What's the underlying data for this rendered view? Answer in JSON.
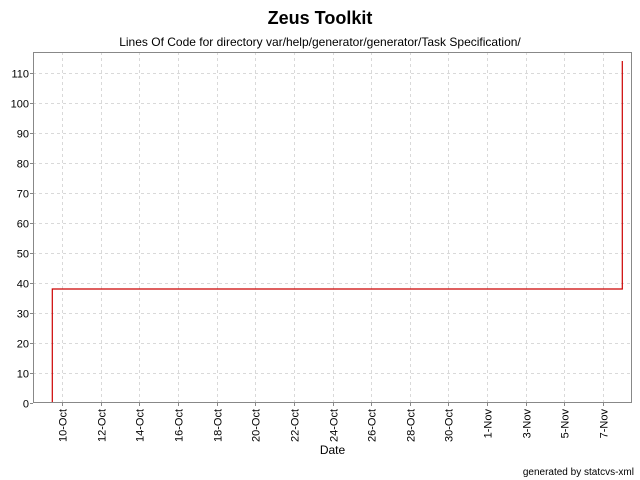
{
  "chart_data": {
    "type": "line",
    "title": "Zeus Toolkit",
    "subtitle": "Lines Of Code for directory var/help/generator/generator/Task Specification/",
    "xlabel": "Date",
    "ylabel": "",
    "step": true,
    "grid": true,
    "legend": "none",
    "line_color": "#cc0000",
    "ylim": [
      0,
      117
    ],
    "yticks": [
      0,
      10,
      20,
      30,
      40,
      50,
      60,
      70,
      80,
      90,
      100,
      110
    ],
    "xlim": [
      "2004-10-08T12:00",
      "2004-11-08T12:00"
    ],
    "xticks": [
      {
        "date": "2004-10-10",
        "label": "10-Oct"
      },
      {
        "date": "2004-10-12",
        "label": "12-Oct"
      },
      {
        "date": "2004-10-14",
        "label": "14-Oct"
      },
      {
        "date": "2004-10-16",
        "label": "16-Oct"
      },
      {
        "date": "2004-10-18",
        "label": "18-Oct"
      },
      {
        "date": "2004-10-20",
        "label": "20-Oct"
      },
      {
        "date": "2004-10-22",
        "label": "22-Oct"
      },
      {
        "date": "2004-10-24",
        "label": "24-Oct"
      },
      {
        "date": "2004-10-26",
        "label": "26-Oct"
      },
      {
        "date": "2004-10-28",
        "label": "28-Oct"
      },
      {
        "date": "2004-10-30",
        "label": "30-Oct"
      },
      {
        "date": "2004-11-01",
        "label": "1-Nov"
      },
      {
        "date": "2004-11-03",
        "label": "3-Nov"
      },
      {
        "date": "2004-11-05",
        "label": "5-Nov"
      },
      {
        "date": "2004-11-07",
        "label": "7-Nov"
      }
    ],
    "series": [
      {
        "points": [
          {
            "x": "2004-10-09T12:00",
            "y": 0
          },
          {
            "x": "2004-10-09T12:00",
            "y": 38
          },
          {
            "x": "2004-11-08T00:00",
            "y": 38
          },
          {
            "x": "2004-11-08T00:00",
            "y": 114
          }
        ]
      }
    ]
  },
  "footer": "generated by statcvs-xml"
}
